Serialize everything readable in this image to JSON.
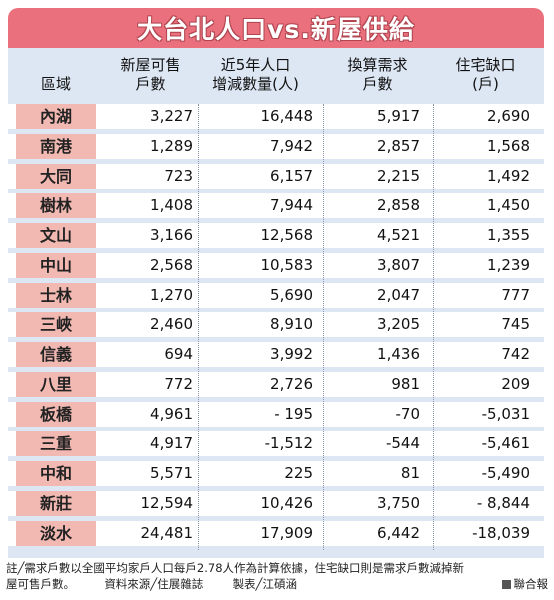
{
  "title": "大台北人口vs.新屋供給",
  "headers": {
    "district": "區域",
    "new_units": [
      "新屋可售",
      "戶數"
    ],
    "pop_change": [
      "近5年人口",
      "增減數量(人)"
    ],
    "demand": [
      "換算需求",
      "戶數"
    ],
    "shortage": [
      "住宅缺口",
      "(戶)"
    ]
  },
  "rows": [
    {
      "district": "內湖",
      "new_units": "3,227",
      "pop_change": "16,448",
      "demand": "5,917",
      "shortage": "2,690"
    },
    {
      "district": "南港",
      "new_units": "1,289",
      "pop_change": "7,942",
      "demand": "2,857",
      "shortage": "1,568"
    },
    {
      "district": "大同",
      "new_units": "723",
      "pop_change": "6,157",
      "demand": "2,215",
      "shortage": "1,492"
    },
    {
      "district": "樹林",
      "new_units": "1,408",
      "pop_change": "7,944",
      "demand": "2,858",
      "shortage": "1,450"
    },
    {
      "district": "文山",
      "new_units": "3,166",
      "pop_change": "12,568",
      "demand": "4,521",
      "shortage": "1,355"
    },
    {
      "district": "中山",
      "new_units": "2,568",
      "pop_change": "10,583",
      "demand": "3,807",
      "shortage": "1,239"
    },
    {
      "district": "士林",
      "new_units": "1,270",
      "pop_change": "5,690",
      "demand": "2,047",
      "shortage": "777"
    },
    {
      "district": "三峽",
      "new_units": "2,460",
      "pop_change": "8,910",
      "demand": "3,205",
      "shortage": "745"
    },
    {
      "district": "信義",
      "new_units": "694",
      "pop_change": "3,992",
      "demand": "1,436",
      "shortage": "742"
    },
    {
      "district": "八里",
      "new_units": "772",
      "pop_change": "2,726",
      "demand": "981",
      "shortage": "209"
    },
    {
      "district": "板橋",
      "new_units": "4,961",
      "pop_change": "- 195",
      "demand": "-70",
      "shortage": "-5,031"
    },
    {
      "district": "三重",
      "new_units": "4,917",
      "pop_change": "-1,512",
      "demand": "-544",
      "shortage": "-5,461"
    },
    {
      "district": "中和",
      "new_units": "5,571",
      "pop_change": "225",
      "demand": "81",
      "shortage": "-5,490"
    },
    {
      "district": "新莊",
      "new_units": "12,594",
      "pop_change": "10,426",
      "demand": "3,750",
      "shortage": "- 8,844"
    },
    {
      "district": "淡水",
      "new_units": "24,481",
      "pop_change": "17,909",
      "demand": "6,442",
      "shortage": "-18,039"
    }
  ],
  "footer": {
    "note": "註╱需求戶數以全國平均家戶人口每戶2.78人作為計算依據，住宅缺口則是需求戶數減掉新",
    "note2": "屋可售戶數。",
    "source": "資料來源╱住展雜誌",
    "maker": "製表╱江碩涵",
    "brand": "聯合報"
  }
}
